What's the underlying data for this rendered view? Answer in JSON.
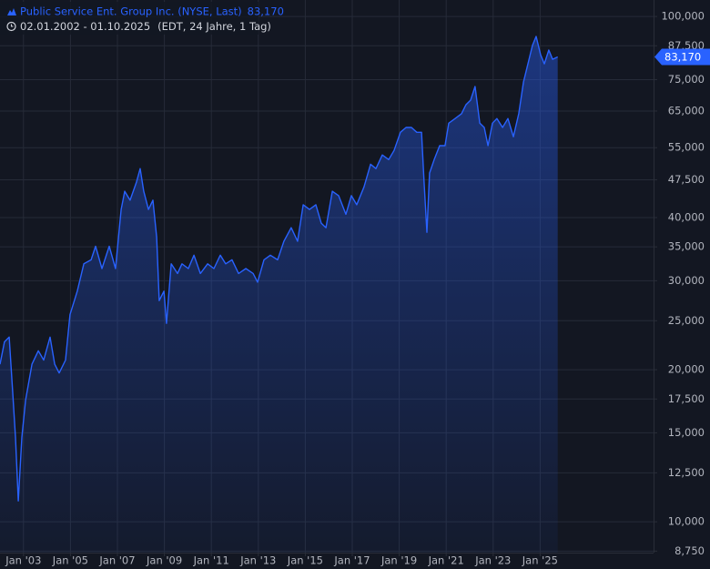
{
  "chart_data": {
    "type": "area",
    "subtitle": "02.01.2002 - 01.10.2025",
    "subtitle_note": "(EDT, 24 Jahre, 1 Tag)",
    "last_value": {
      "value": 83170,
      "label": "83,170"
    },
    "log_y": true,
    "grid": true,
    "x": [
      2002.0,
      2002.19,
      2002.39,
      2002.54,
      2002.66,
      2002.78,
      2002.93,
      2003.09,
      2003.36,
      2003.63,
      2003.86,
      2004.13,
      2004.33,
      2004.52,
      2004.79,
      2004.98,
      2005.29,
      2005.57,
      2005.88,
      2006.07,
      2006.34,
      2006.65,
      2006.92,
      2007.16,
      2007.31,
      2007.54,
      2007.81,
      2007.97,
      2008.12,
      2008.32,
      2008.51,
      2008.67,
      2008.78,
      2008.98,
      2009.09,
      2009.29,
      2009.56,
      2009.75,
      2010.02,
      2010.26,
      2010.53,
      2010.84,
      2011.11,
      2011.38,
      2011.61,
      2011.88,
      2012.16,
      2012.47,
      2012.78,
      2012.97,
      2013.24,
      2013.51,
      2013.82,
      2014.09,
      2014.4,
      2014.67,
      2014.91,
      2015.18,
      2015.45,
      2015.68,
      2015.88,
      2016.15,
      2016.42,
      2016.73,
      2016.96,
      2017.19,
      2017.5,
      2017.78,
      2018.01,
      2018.28,
      2018.55,
      2018.78,
      2019.05,
      2019.29,
      2019.52,
      2019.75,
      2019.95,
      2020.06,
      2020.18,
      2020.29,
      2020.49,
      2020.72,
      2020.95,
      2021.11,
      2021.38,
      2021.65,
      2021.84,
      2022.04,
      2022.23,
      2022.43,
      2022.62,
      2022.78,
      2022.97,
      2023.16,
      2023.4,
      2023.63,
      2023.86,
      2024.09,
      2024.29,
      2024.48,
      2024.67,
      2024.83,
      2025.02,
      2025.18,
      2025.37,
      2025.53,
      2025.75
    ],
    "series": [
      {
        "name": "Public Service Ent. Group Inc. (NYSE, Last)",
        "color": "#2962ff",
        "values": [
          20500,
          22700,
          23200,
          18100,
          14700,
          11000,
          14700,
          17400,
          20500,
          21800,
          20900,
          23200,
          20500,
          19700,
          20900,
          25700,
          28600,
          32400,
          33000,
          35100,
          31700,
          35100,
          31700,
          41500,
          45100,
          43300,
          47000,
          50000,
          45100,
          41500,
          43300,
          36600,
          27400,
          28600,
          24700,
          32400,
          31000,
          32400,
          31700,
          33700,
          31000,
          32400,
          31700,
          33700,
          32400,
          33000,
          31000,
          31700,
          31000,
          29800,
          33000,
          33700,
          33000,
          35900,
          38200,
          35900,
          42400,
          41500,
          42400,
          39000,
          38200,
          45100,
          44200,
          40600,
          44200,
          42400,
          46000,
          51000,
          50000,
          53200,
          52100,
          54300,
          59000,
          60300,
          60300,
          59000,
          59000,
          47000,
          37400,
          49000,
          52100,
          55500,
          55500,
          61500,
          62800,
          64200,
          66900,
          68300,
          72700,
          61500,
          60300,
          55500,
          61500,
          62800,
          60300,
          62800,
          57800,
          64200,
          74200,
          80600,
          87600,
          91300,
          84000,
          80600,
          85800,
          82300,
          83170
        ]
      }
    ],
    "xlim": [
      2002.0,
      2029.83
    ],
    "ylim": [
      8690,
      107800
    ],
    "xticks": [
      {
        "value": 2003,
        "label": "Jan '03"
      },
      {
        "value": 2005,
        "label": "Jan '05"
      },
      {
        "value": 2007,
        "label": "Jan '07"
      },
      {
        "value": 2009,
        "label": "Jan '09"
      },
      {
        "value": 2011,
        "label": "Jan '11"
      },
      {
        "value": 2013,
        "label": "Jan '13"
      },
      {
        "value": 2015,
        "label": "Jan '15"
      },
      {
        "value": 2017,
        "label": "Jan '17"
      },
      {
        "value": 2019,
        "label": "Jan '19"
      },
      {
        "value": 2021,
        "label": "Jan '21"
      },
      {
        "value": 2023,
        "label": "Jan '23"
      },
      {
        "value": 2025,
        "label": "Jan '25"
      }
    ],
    "yticks": [
      {
        "value": 100000,
        "label": "100,000"
      },
      {
        "value": 87500,
        "label": "87,500"
      },
      {
        "value": 75000,
        "label": "75,000"
      },
      {
        "value": 65000,
        "label": "65,000"
      },
      {
        "value": 55000,
        "label": "55,000"
      },
      {
        "value": 47500,
        "label": "47,500"
      },
      {
        "value": 40000,
        "label": "40,000"
      },
      {
        "value": 35000,
        "label": "35,000"
      },
      {
        "value": 30000,
        "label": "30,000"
      },
      {
        "value": 25000,
        "label": "25,000"
      },
      {
        "value": 20000,
        "label": "20,000"
      },
      {
        "value": 17500,
        "label": "17,500"
      },
      {
        "value": 15000,
        "label": "15,000"
      },
      {
        "value": 12500,
        "label": "12,500"
      },
      {
        "value": 10000,
        "label": "10,000"
      },
      {
        "value": 8750,
        "label": "8,750"
      }
    ]
  }
}
